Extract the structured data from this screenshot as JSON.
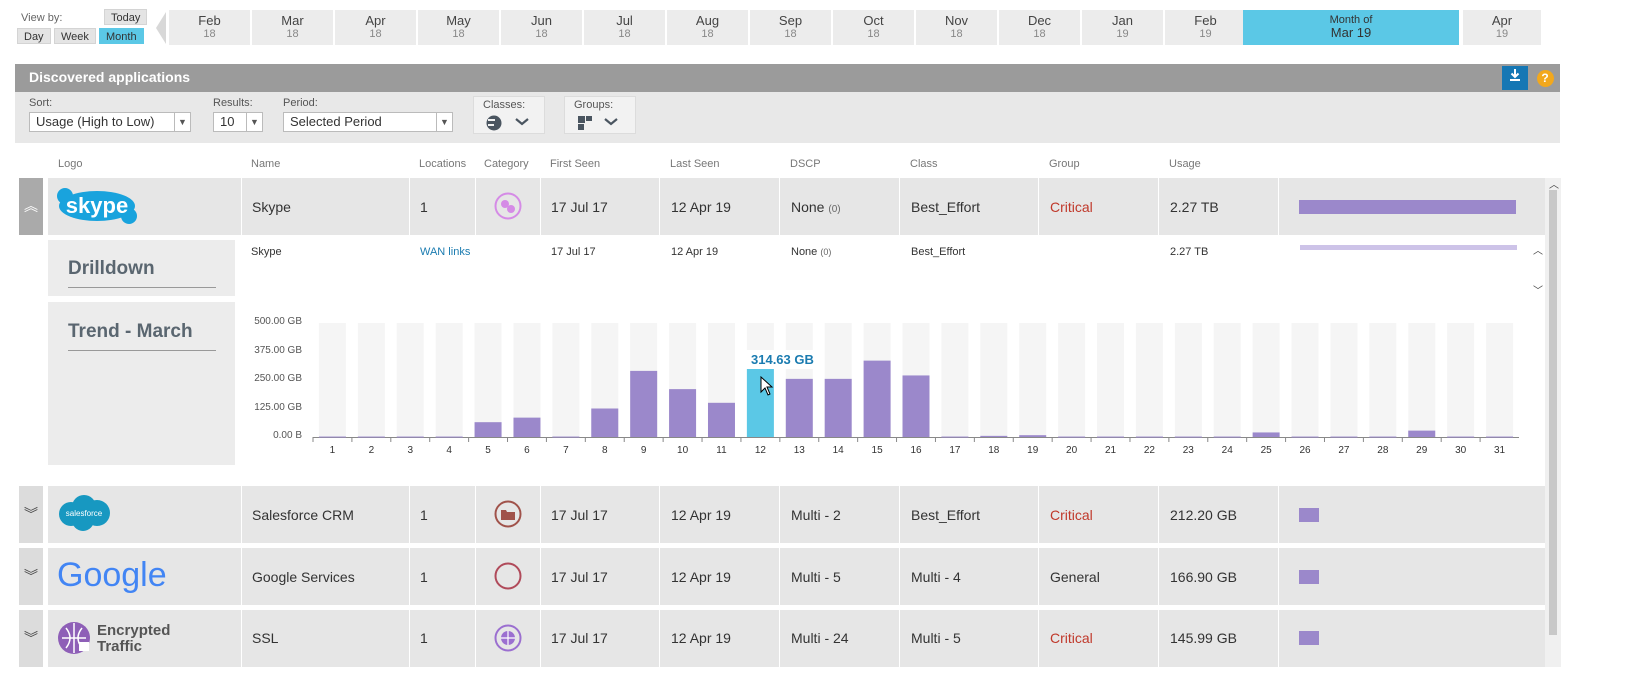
{
  "timeline": {
    "view_by_label": "View by:",
    "today_label": "Today",
    "day_label": "Day",
    "week_label": "Week",
    "month_label": "Month",
    "months": [
      {
        "m": "Feb",
        "y": "18"
      },
      {
        "m": "Mar",
        "y": "18"
      },
      {
        "m": "Apr",
        "y": "18"
      },
      {
        "m": "May",
        "y": "18"
      },
      {
        "m": "Jun",
        "y": "18"
      },
      {
        "m": "Jul",
        "y": "18"
      },
      {
        "m": "Aug",
        "y": "18"
      },
      {
        "m": "Sep",
        "y": "18"
      },
      {
        "m": "Oct",
        "y": "18"
      },
      {
        "m": "Nov",
        "y": "18"
      },
      {
        "m": "Dec",
        "y": "18"
      },
      {
        "m": "Jan",
        "y": "19"
      },
      {
        "m": "Feb",
        "y": "19"
      }
    ],
    "selected": {
      "m": "Month of",
      "y": "Mar 19"
    },
    "next": {
      "m": "Apr",
      "y": "19"
    }
  },
  "panel": {
    "title": "Discovered applications",
    "download_icon": "download-icon",
    "help_icon": "help-icon",
    "help_glyph": "?"
  },
  "filters": {
    "sort_label": "Sort:",
    "sort_value": "Usage (High to Low)",
    "results_label": "Results:",
    "results_value": "10",
    "period_label": "Period:",
    "period_value": "Selected Period",
    "classes_label": "Classes:",
    "groups_label": "Groups:"
  },
  "columns": [
    "Logo",
    "Name",
    "Locations",
    "Category",
    "First Seen",
    "Last Seen",
    "DSCP",
    "Class",
    "Group",
    "Usage"
  ],
  "rows": [
    {
      "logo": "skype",
      "name": "Skype",
      "locations": "1",
      "first_seen": "17 Jul 17",
      "last_seen": "12 Apr 19",
      "dscp": "None",
      "dscp_count": "(0)",
      "class": "Best_Effort",
      "group": "Critical",
      "usage": "2.27 TB",
      "usage_fraction": 1.0
    },
    {
      "logo": "salesforce",
      "name": "Salesforce CRM",
      "locations": "1",
      "first_seen": "17 Jul 17",
      "last_seen": "12 Apr 19",
      "dscp": "Multi - 2",
      "class": "Best_Effort",
      "group": "Critical",
      "usage": "212.20 GB",
      "usage_fraction": 0.093
    },
    {
      "logo": "google",
      "name": "Google Services",
      "locations": "1",
      "first_seen": "17 Jul 17",
      "last_seen": "12 Apr 19",
      "dscp": "Multi - 5",
      "class": "Multi - 4",
      "group": "General",
      "usage": "166.90 GB",
      "usage_fraction": 0.073
    },
    {
      "logo": "encrypted",
      "name": "SSL",
      "locations": "1",
      "first_seen": "17 Jul 17",
      "last_seen": "12 Apr 19",
      "dscp": "Multi - 24",
      "class": "Multi - 5",
      "group": "Critical",
      "usage": "145.99 GB",
      "usage_fraction": 0.064
    }
  ],
  "logos": {
    "skype": "skype",
    "salesforce": "salesforce",
    "google": "Google",
    "encrypted_line1": "Encrypted",
    "encrypted_line2": "Traffic"
  },
  "drilldown": {
    "title": "Drilldown",
    "name": "Skype",
    "locations_link": "WAN links",
    "first_seen": "17 Jul 17",
    "last_seen": "12 Apr 19",
    "dscp": "None",
    "dscp_count": "(0)",
    "class": "Best_Effort",
    "usage": "2.27 TB"
  },
  "trend": {
    "title": "Trend - March",
    "tooltip": "314.63 GB"
  },
  "colors": {
    "accent": "#5bc8e6",
    "bar": "#9b88cb",
    "bar_highlight": "#5bc8e6",
    "critical": "#c0392b",
    "link": "#1a7bb0"
  },
  "chart_data": {
    "type": "bar",
    "title": "Trend - March",
    "categories": [
      "1",
      "2",
      "3",
      "4",
      "5",
      "6",
      "7",
      "8",
      "9",
      "10",
      "11",
      "12",
      "13",
      "14",
      "15",
      "16",
      "17",
      "18",
      "19",
      "20",
      "21",
      "22",
      "23",
      "24",
      "25",
      "26",
      "27",
      "28",
      "29",
      "30",
      "31"
    ],
    "values": [
      2,
      2,
      2,
      2,
      65,
      85,
      2,
      125,
      290,
      210,
      150,
      314.63,
      255,
      255,
      335,
      270,
      2,
      5,
      8,
      2,
      2,
      2,
      2,
      2,
      20,
      2,
      2,
      2,
      28,
      2,
      2
    ],
    "y_ticks": [
      "500.00 GB",
      "375.00 GB",
      "250.00 GB",
      "125.00 GB",
      "0.00 B"
    ],
    "ylim": [
      0,
      500
    ],
    "highlight_index": 11
  }
}
